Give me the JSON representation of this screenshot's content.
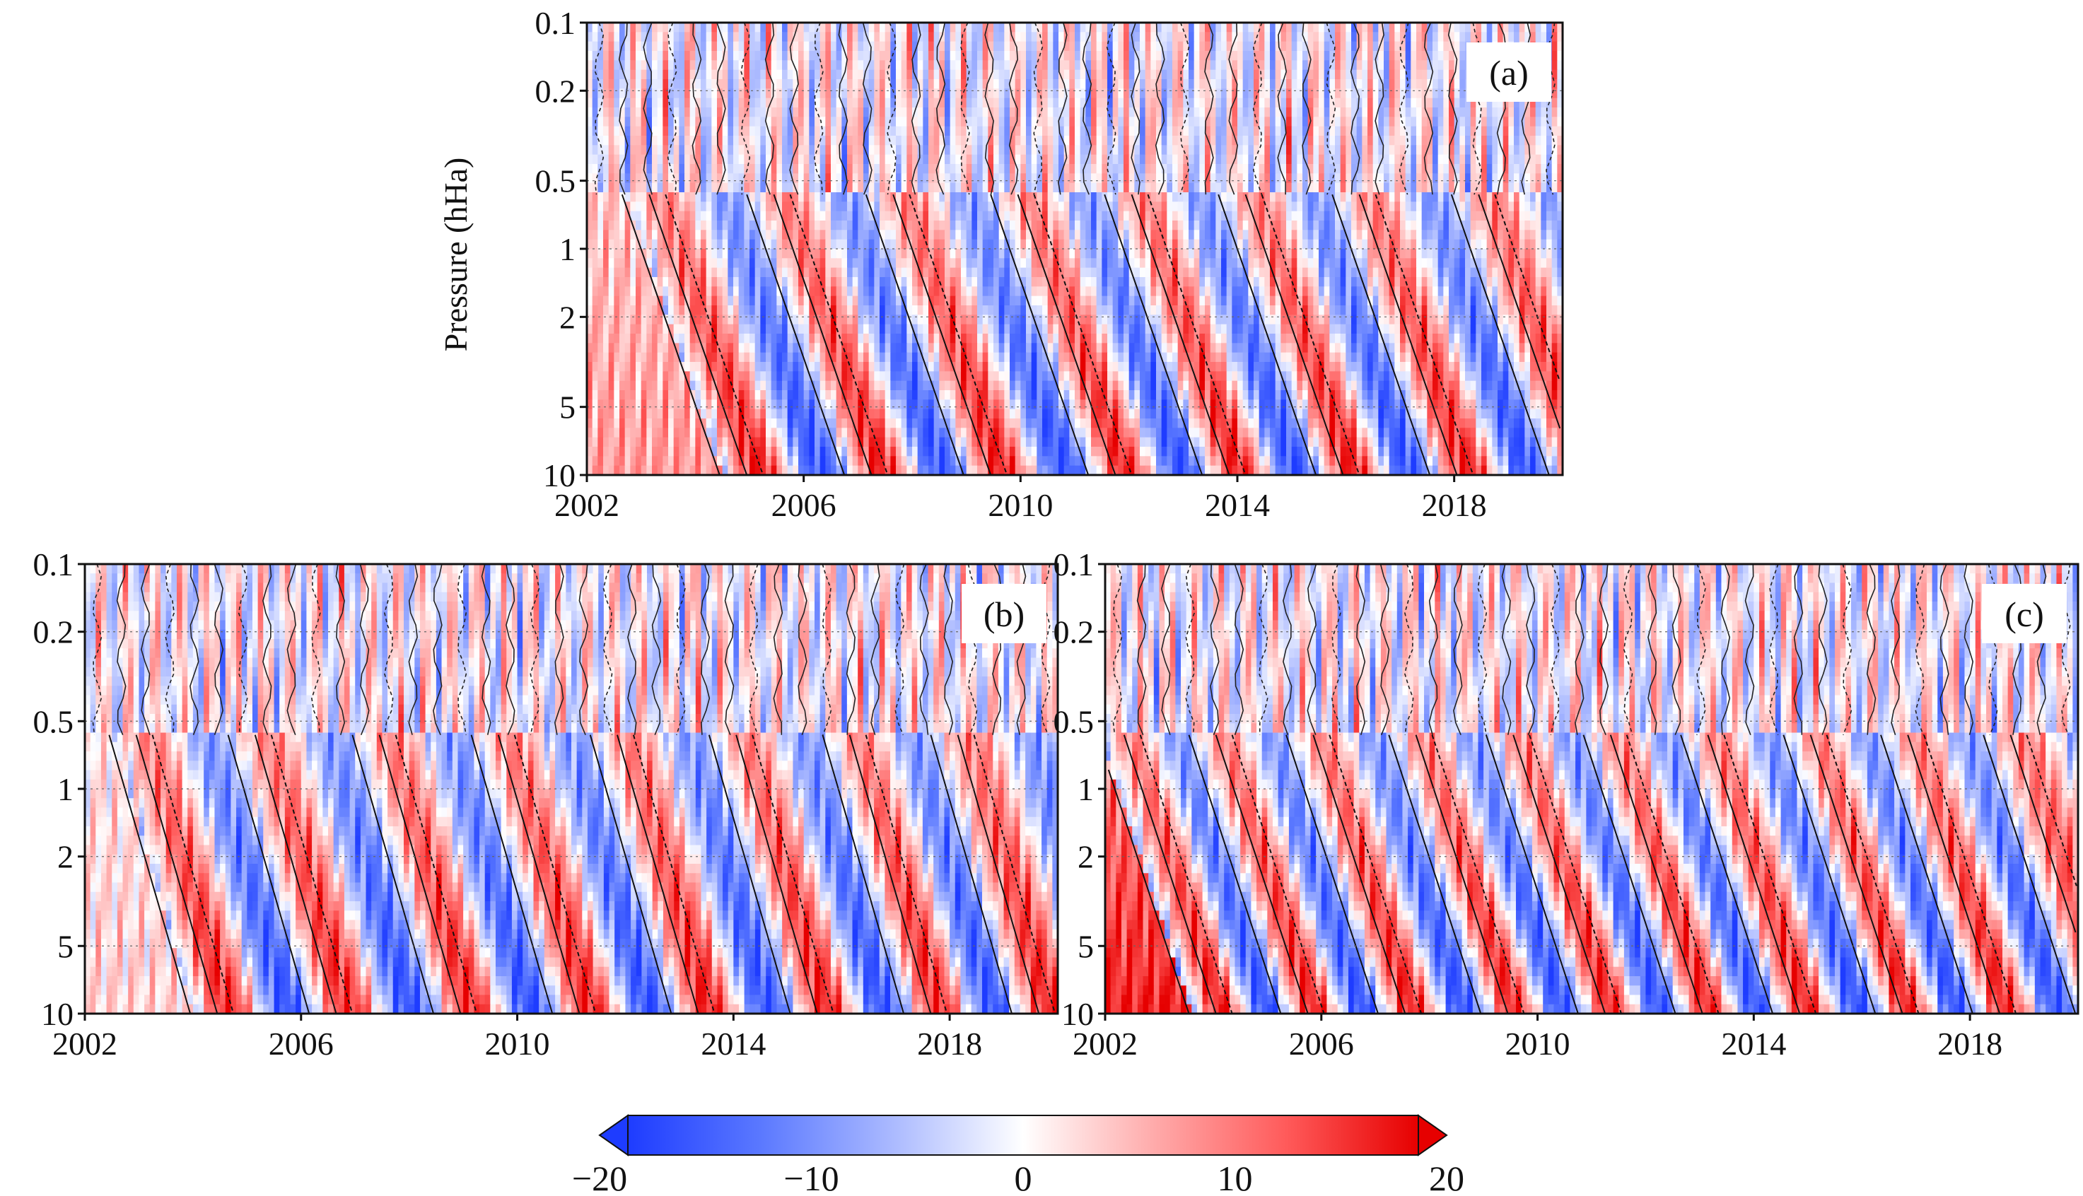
{
  "chart_data": {
    "type": "heatmap",
    "colormap": {
      "stops": [
        "#1e3cff",
        "#5a78ff",
        "#aab9ff",
        "#ffffff",
        "#ffaaaa",
        "#ff5a5a",
        "#e60000"
      ],
      "range": [
        -20,
        20
      ],
      "ticks": [
        -20,
        -10,
        0,
        10,
        20
      ],
      "extend": "both"
    },
    "x_axis": {
      "range": [
        2002,
        2020
      ],
      "ticks": [
        "2002",
        "2006",
        "2010",
        "2014",
        "2018"
      ]
    },
    "y_axis": {
      "label": "Pressure (hHa)",
      "scale": "log",
      "range": [
        10,
        0.1
      ],
      "ticks": [
        "0.1",
        "0.2",
        "0.5",
        "1",
        "2",
        "5",
        "10"
      ]
    },
    "panels": [
      {
        "id": "a",
        "label": "(a)",
        "show_ylabel": true,
        "qbo_onsets": [
          2002.9,
          2005.2,
          2007.4,
          2009.7,
          2011.8,
          2013.9,
          2016.0,
          2018.2
        ],
        "descent_years": 1.8
      },
      {
        "id": "b",
        "label": "(b)",
        "show_ylabel": false,
        "qbo_onsets": [
          2002.7,
          2004.9,
          2007.2,
          2009.4,
          2011.6,
          2013.8,
          2015.9,
          2017.9
        ],
        "descent_years": 1.5
      },
      {
        "id": "c",
        "label": "(c)",
        "show_ylabel": false,
        "qbo_onsets": [
          2002.1,
          2003.8,
          2005.6,
          2007.5,
          2009.3,
          2011.1,
          2012.9,
          2014.8,
          2016.6,
          2018.5
        ],
        "descent_years": 1.7
      }
    ]
  }
}
